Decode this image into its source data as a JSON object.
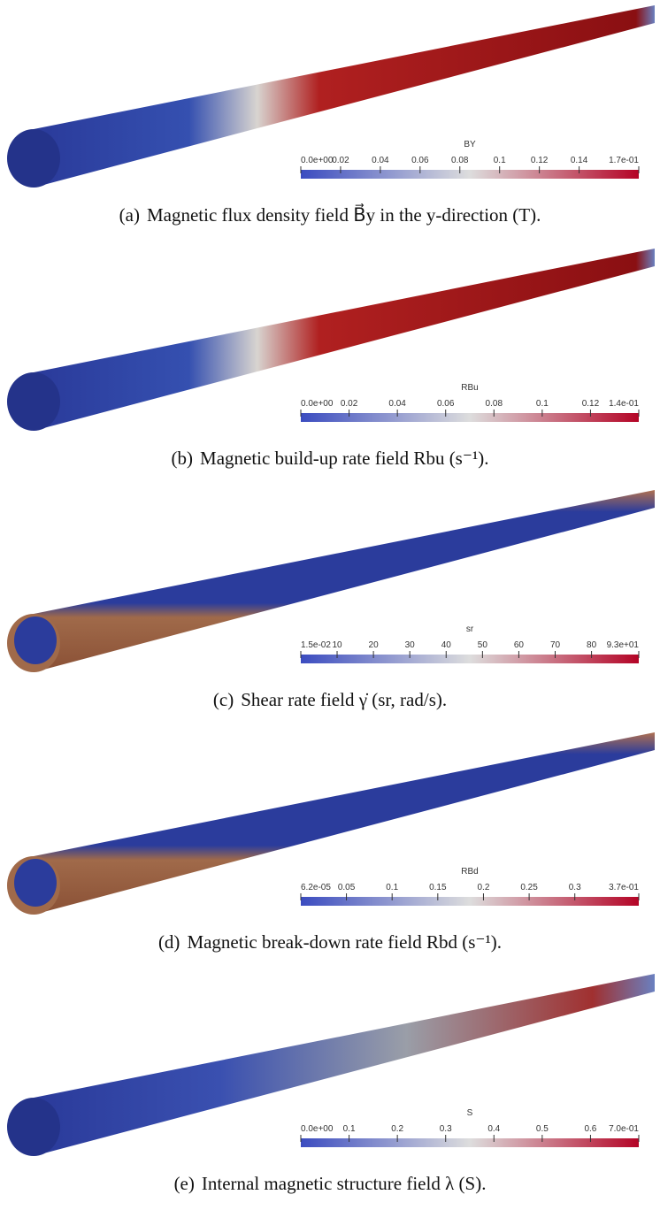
{
  "panels": [
    {
      "label": "(a)",
      "caption": "Magnetic flux density field B⃗y in the y-direction (T).",
      "colorbar": {
        "title": "BY",
        "ticks": [
          "0.0e+00",
          "0.02",
          "0.04",
          "0.06",
          "0.08",
          "0.1",
          "0.12",
          "0.14",
          "1.7e-01"
        ]
      }
    },
    {
      "label": "(b)",
      "caption": "Magnetic build-up rate field Rbu (s⁻¹).",
      "colorbar": {
        "title": "RBu",
        "ticks": [
          "0.0e+00",
          "0.02",
          "0.04",
          "0.06",
          "0.08",
          "0.1",
          "0.12",
          "1.4e-01"
        ]
      }
    },
    {
      "label": "(c)",
      "caption": "Shear rate field γ̇ (sr, rad/s).",
      "colorbar": {
        "title": "sr",
        "ticks": [
          "1.5e-02",
          "10",
          "20",
          "30",
          "40",
          "50",
          "60",
          "70",
          "80",
          "9.3e+01"
        ]
      }
    },
    {
      "label": "(d)",
      "caption": "Magnetic break-down rate field Rbd (s⁻¹).",
      "colorbar": {
        "title": "RBd",
        "ticks": [
          "6.2e-05",
          "0.05",
          "0.1",
          "0.15",
          "0.2",
          "0.25",
          "0.3",
          "3.7e-01"
        ]
      }
    },
    {
      "label": "(e)",
      "caption": "Internal magnetic structure field λ (S).",
      "colorbar": {
        "title": "S",
        "ticks": [
          "0.0e+00",
          "0.1",
          "0.2",
          "0.3",
          "0.4",
          "0.5",
          "0.6",
          "7.0e-01"
        ]
      }
    }
  ]
}
